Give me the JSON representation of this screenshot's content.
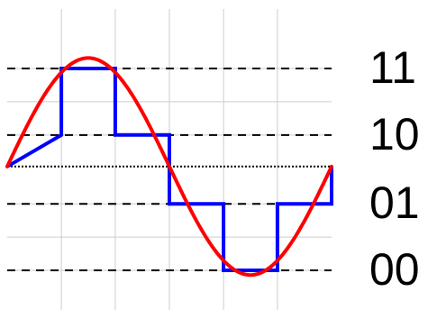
{
  "chart_data": {
    "type": "line",
    "title": "",
    "xlabel": "",
    "ylabel": "",
    "xlim": [
      0,
      1
    ],
    "ylim": [
      -1.23,
      1.35
    ],
    "grid": true,
    "levels": [
      {
        "code": "11",
        "value": 0.84
      },
      {
        "code": "10",
        "value": 0.27
      },
      {
        "code": "01",
        "value": -0.32
      },
      {
        "code": "00",
        "value": -0.89
      }
    ],
    "series": [
      {
        "type": "sine",
        "color": "#ff0000",
        "amplitude": 0.93,
        "x": [
          0,
          0.0833,
          0.1667,
          0.25,
          0.3333,
          0.4167,
          0.5,
          0.5833,
          0.6667,
          0.75,
          0.8333,
          0.9167,
          1
        ],
        "y": [
          0,
          0.465,
          0.805,
          0.93,
          0.805,
          0.465,
          0,
          -0.465,
          -0.805,
          -0.93,
          -0.805,
          -0.465,
          0
        ]
      },
      {
        "type": "step",
        "color": "#0000ff",
        "x": [
          0,
          0.167,
          0.167,
          0.333,
          0.333,
          0.5,
          0.5,
          0.667,
          0.667,
          0.833,
          0.833,
          1,
          1
        ],
        "y": [
          0,
          0.27,
          0.84,
          0.84,
          0.27,
          0.27,
          -0.32,
          -0.32,
          -0.89,
          -0.89,
          -0.32,
          -0.32,
          0
        ]
      }
    ],
    "colors": {
      "grid": "#cccccc",
      "level_line": "#000000",
      "zero_line": "#000000",
      "sine": "#ff0000",
      "step": "#0000ff"
    }
  }
}
